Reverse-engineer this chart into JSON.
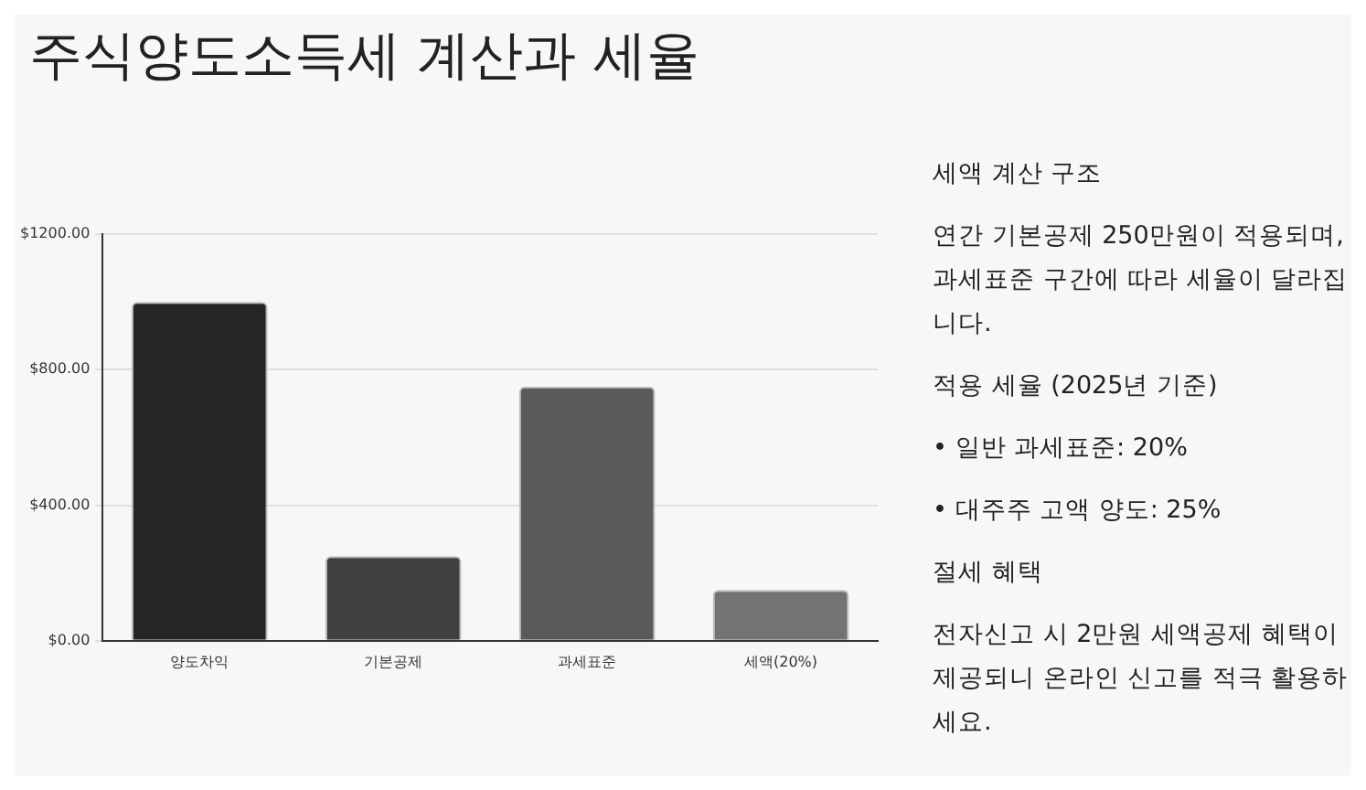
{
  "chart_data": {
    "type": "bar",
    "title": "주식양도소득세 계산과 세율",
    "categories": [
      "양도차익",
      "기본공제",
      "과세표준",
      "세액(20%)"
    ],
    "values": [
      1000,
      250,
      750,
      150
    ],
    "colors": [
      "#262626",
      "#404040",
      "#5a5a5a",
      "#737373"
    ],
    "ylim": [
      0,
      1200
    ],
    "yticks": [
      {
        "value": 0,
        "label": "$0.00"
      },
      {
        "value": 400,
        "label": "$400.00"
      },
      {
        "value": 800,
        "label": "$800.00"
      },
      {
        "value": 1200,
        "label": "$1200.00"
      }
    ],
    "grid": "y",
    "legend": false,
    "annotations": [
      "세액 계산 구조",
      "연간 기본공제 250만원이 적용되며, 과세표준 구간에 따라 세율이 달라집니다.",
      "적용 세율 (2025년 기준)",
      "• 일반 과세표준: 20%",
      "• 대주주 고액 양도: 25%",
      "절세 혜택",
      "전자신고 시 2만원 세액공제 혜택이 제공되니 온라인 신고를 적극 활용하세요."
    ]
  }
}
